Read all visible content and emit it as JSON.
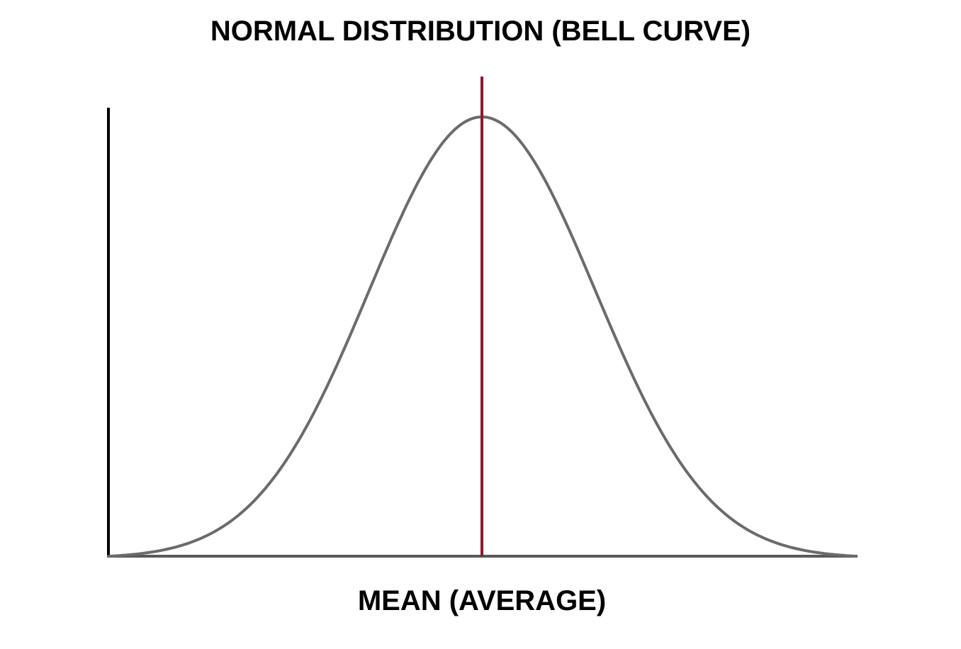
{
  "chart_data": {
    "type": "line",
    "title": "NORMAL DISTRIBUTION (BELL CURVE)",
    "xlabel": "MEAN (AVERAGE)",
    "ylabel": "",
    "series": [
      {
        "curve": "normal-distribution",
        "mean": 0,
        "std_dev": 1,
        "x_range": [
          -3.3,
          3.3
        ]
      }
    ],
    "mean_marker": {
      "x": 0
    },
    "grid": false,
    "ticks": false
  },
  "colors": {
    "curve": "#6b6b6b",
    "mean_line": "#8b1a2b",
    "axes": "#000000",
    "x_axis": "#5a5a5a",
    "background": "#ffffff"
  }
}
